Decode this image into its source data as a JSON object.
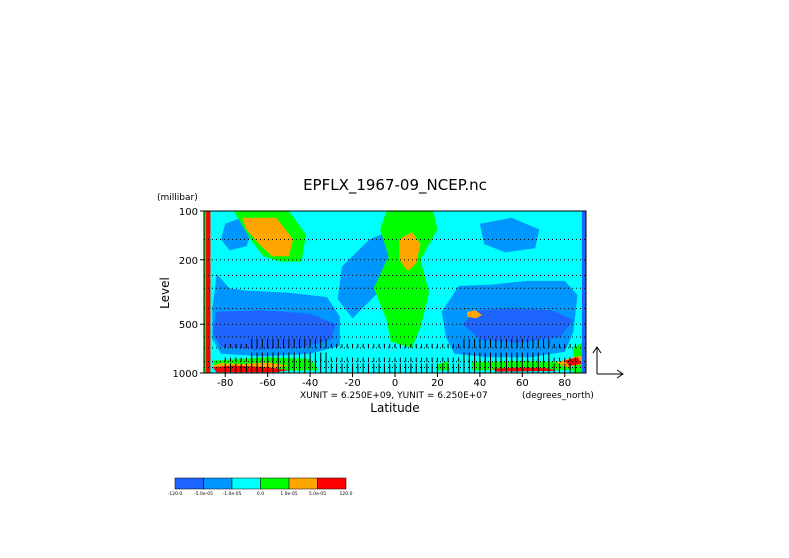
{
  "chart_data": {
    "type": "heatmap",
    "title": "EPFLX_1967-09_NCEP.nc",
    "xlabel": "Latitude",
    "x_units": "(degrees_north)",
    "ylabel": "Level",
    "y_units": "(millibar)",
    "xlim": [
      -90,
      90
    ],
    "ylim": [
      1000,
      100
    ],
    "y_scale": "log",
    "grid": true,
    "x_ticks": [
      -80,
      -60,
      -40,
      -20,
      0,
      20,
      40,
      60,
      80
    ],
    "y_ticks": [
      100,
      200,
      500,
      1000
    ],
    "vector_unit_label": "XUNIT = 6.250E+09, YUNIT = 6.250E+07",
    "colorbar": {
      "colors": [
        "#1e64ff",
        "#0096ff",
        "#00ffff",
        "#00ff00",
        "#ffa500",
        "#ff0000"
      ],
      "labels": [
        "-120.0",
        "-5.0e-05",
        "-1.0e-05",
        "0.0",
        "1.0e-05",
        "5.0e-05",
        "120.0"
      ]
    },
    "regions": [
      {
        "level": 2,
        "pts": [
          [
            -88,
            100
          ],
          [
            88,
            100
          ],
          [
            88,
            1000
          ],
          [
            -88,
            1000
          ]
        ]
      },
      {
        "level": 1,
        "pts": [
          [
            -84,
            245
          ],
          [
            -78,
            300
          ],
          [
            -70,
            310
          ],
          [
            -50,
            320
          ],
          [
            -32,
            340
          ],
          [
            -26,
            450
          ],
          [
            -26,
            680
          ],
          [
            -40,
            760
          ],
          [
            -62,
            790
          ],
          [
            -82,
            760
          ],
          [
            -86,
            620
          ],
          [
            -86,
            400
          ]
        ]
      },
      {
        "level": 1,
        "pts": [
          [
            30,
            290
          ],
          [
            45,
            285
          ],
          [
            62,
            270
          ],
          [
            80,
            270
          ],
          [
            86,
            330
          ],
          [
            84,
            560
          ],
          [
            80,
            740
          ],
          [
            64,
            800
          ],
          [
            44,
            800
          ],
          [
            28,
            760
          ],
          [
            24,
            600
          ],
          [
            22,
            420
          ]
        ]
      },
      {
        "level": 1,
        "pts": [
          [
            -80,
            120
          ],
          [
            -74,
            112
          ],
          [
            -66,
            120
          ],
          [
            -70,
            165
          ],
          [
            -78,
            175
          ],
          [
            -82,
            150
          ]
        ]
      },
      {
        "level": 1,
        "pts": [
          [
            -12,
            150
          ],
          [
            -4,
            135
          ],
          [
            -2,
            190
          ],
          [
            -6,
            300
          ],
          [
            -20,
            460
          ],
          [
            -27,
            350
          ],
          [
            -25,
            220
          ]
        ]
      },
      {
        "level": 1,
        "pts": [
          [
            40,
            120
          ],
          [
            55,
            110
          ],
          [
            68,
            130
          ],
          [
            66,
            170
          ],
          [
            52,
            180
          ],
          [
            42,
            160
          ]
        ]
      },
      {
        "level": 0,
        "pts": [
          [
            -84,
            420
          ],
          [
            -64,
            410
          ],
          [
            -40,
            430
          ],
          [
            -28,
            500
          ],
          [
            -30,
            620
          ],
          [
            -44,
            700
          ],
          [
            -66,
            720
          ],
          [
            -82,
            690
          ],
          [
            -86,
            560
          ]
        ]
      },
      {
        "level": 0,
        "pts": [
          [
            38,
            410
          ],
          [
            56,
            400
          ],
          [
            74,
            410
          ],
          [
            84,
            470
          ],
          [
            78,
            600
          ],
          [
            58,
            650
          ],
          [
            40,
            620
          ],
          [
            32,
            500
          ]
        ]
      },
      {
        "level": 3,
        "pts": [
          [
            -4,
            100
          ],
          [
            18,
            100
          ],
          [
            20,
            130
          ],
          [
            12,
            200
          ],
          [
            16,
            320
          ],
          [
            12,
            520
          ],
          [
            8,
            700
          ],
          [
            -2,
            640
          ],
          [
            -4,
            470
          ],
          [
            -10,
            300
          ],
          [
            -3,
            190
          ],
          [
            -7,
            130
          ]
        ]
      },
      {
        "level": 3,
        "pts": [
          [
            -76,
            100
          ],
          [
            -50,
            100
          ],
          [
            -42,
            140
          ],
          [
            -44,
            205
          ],
          [
            -54,
            205
          ],
          [
            -62,
            190
          ],
          [
            -68,
            150
          ]
        ]
      },
      {
        "level": 3,
        "pts": [
          [
            -90,
            100
          ],
          [
            -87,
            100
          ],
          [
            -87,
            1000
          ],
          [
            -90,
            1000
          ]
        ]
      },
      {
        "level": 3,
        "pts": [
          [
            84,
            700
          ],
          [
            89,
            640
          ],
          [
            89,
            1000
          ],
          [
            84,
            1000
          ]
        ]
      },
      {
        "level": 3,
        "pts": [
          [
            20,
            880
          ],
          [
            25,
            850
          ],
          [
            26,
            960
          ],
          [
            20,
            960
          ]
        ]
      },
      {
        "level": 3,
        "pts": [
          [
            -86,
            840
          ],
          [
            -60,
            800
          ],
          [
            -40,
            820
          ],
          [
            -36,
            960
          ],
          [
            -84,
            980
          ]
        ]
      },
      {
        "level": 3,
        "pts": [
          [
            36,
            860
          ],
          [
            60,
            840
          ],
          [
            82,
            860
          ],
          [
            84,
            960
          ],
          [
            36,
            960
          ]
        ]
      },
      {
        "level": 4,
        "pts": [
          [
            -72,
            110
          ],
          [
            -56,
            110
          ],
          [
            -48,
            150
          ],
          [
            -50,
            190
          ],
          [
            -58,
            190
          ],
          [
            -64,
            160
          ],
          [
            -70,
            130
          ]
        ]
      },
      {
        "level": 4,
        "pts": [
          [
            2,
            150
          ],
          [
            8,
            135
          ],
          [
            12,
            160
          ],
          [
            10,
            210
          ],
          [
            6,
            235
          ],
          [
            2,
            200
          ]
        ]
      },
      {
        "level": 4,
        "pts": [
          [
            34,
            420
          ],
          [
            38,
            410
          ],
          [
            41,
            440
          ],
          [
            38,
            460
          ],
          [
            34,
            450
          ]
        ]
      },
      {
        "level": 4,
        "pts": [
          [
            -86,
            900
          ],
          [
            -82,
            870
          ],
          [
            -72,
            880
          ],
          [
            -66,
            940
          ],
          [
            -84,
            960
          ]
        ]
      },
      {
        "level": 4,
        "pts": [
          [
            76,
            860
          ],
          [
            84,
            800
          ],
          [
            89,
            780
          ],
          [
            89,
            880
          ],
          [
            80,
            920
          ]
        ]
      },
      {
        "level": 4,
        "pts": [
          [
            -72,
            880
          ],
          [
            -60,
            860
          ],
          [
            -50,
            900
          ],
          [
            -60,
            940
          ],
          [
            -70,
            940
          ]
        ]
      },
      {
        "level": 5,
        "pts": [
          [
            -89,
            100
          ],
          [
            -87,
            100
          ],
          [
            -87,
            1000
          ],
          [
            -89,
            1000
          ]
        ]
      },
      {
        "level": 5,
        "pts": [
          [
            -86,
            920
          ],
          [
            -76,
            900
          ],
          [
            -60,
            920
          ],
          [
            -50,
            960
          ],
          [
            -56,
            990
          ],
          [
            -84,
            990
          ]
        ]
      },
      {
        "level": 5,
        "pts": [
          [
            46,
            940
          ],
          [
            60,
            925
          ],
          [
            72,
            935
          ],
          [
            76,
            970
          ],
          [
            48,
            980
          ]
        ]
      },
      {
        "level": 5,
        "pts": [
          [
            80,
            840
          ],
          [
            86,
            800
          ],
          [
            88,
            880
          ],
          [
            82,
            900
          ]
        ]
      },
      {
        "level": 0,
        "pts": [
          [
            88,
            100
          ],
          [
            90,
            100
          ],
          [
            90,
            1000
          ],
          [
            88,
            1000
          ]
        ]
      }
    ]
  }
}
